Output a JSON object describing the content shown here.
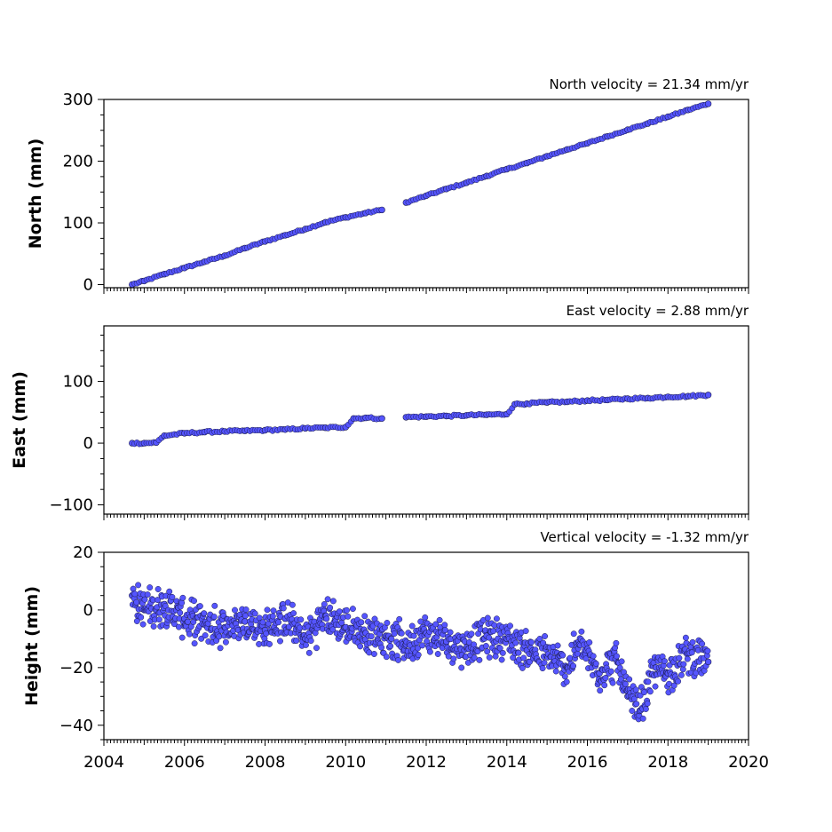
{
  "chart_data": [
    {
      "type": "scatter",
      "velocity_label": "North velocity = 21.34 mm/yr",
      "ylabel": "North (mm)",
      "xlim": [
        2004,
        2020
      ],
      "ylim": [
        -5,
        300
      ],
      "yticks": [
        0,
        100,
        200,
        300
      ],
      "marker_color": "#5555ff",
      "marker_edge": "#1a1a4a",
      "series": [
        {
          "x": [
            2004.7,
            2005.0,
            2005.5,
            2006.0,
            2006.5,
            2007.0,
            2007.5,
            2008.0,
            2008.5,
            2009.0,
            2009.5,
            2010.0,
            2010.5,
            2010.9,
            2011.5,
            2012.0,
            2012.5,
            2013.0,
            2013.5,
            2014.0,
            2014.5,
            2015.0,
            2015.5,
            2016.0,
            2016.5,
            2017.0,
            2017.5,
            2018.0,
            2018.5,
            2019.0
          ],
          "y": [
            0,
            6,
            17,
            27,
            37,
            47,
            59,
            70,
            80,
            90,
            101,
            109,
            116,
            121,
            133,
            144,
            155,
            165,
            176,
            187,
            197,
            208,
            219,
            229,
            240,
            251,
            261,
            272,
            283,
            293
          ]
        }
      ]
    },
    {
      "type": "scatter",
      "velocity_label": "East velocity = 2.88 mm/yr",
      "ylabel": "East (mm)",
      "xlim": [
        2004,
        2020
      ],
      "ylim": [
        -115,
        190
      ],
      "yticks": [
        -100,
        0,
        100
      ],
      "marker_color": "#5555ff",
      "marker_edge": "#1a1a4a",
      "series": [
        {
          "x": [
            2004.7,
            2005.0,
            2005.3,
            2005.5,
            2006.0,
            2006.5,
            2007.0,
            2007.5,
            2008.0,
            2008.5,
            2009.0,
            2009.5,
            2010.0,
            2010.2,
            2010.5,
            2010.9,
            2011.5,
            2012.0,
            2012.5,
            2013.0,
            2013.5,
            2014.0,
            2014.2,
            2014.5,
            2015.0,
            2015.5,
            2016.0,
            2016.5,
            2017.0,
            2017.5,
            2018.0,
            2018.5,
            2019.0
          ],
          "y": [
            0,
            0,
            1,
            12,
            16,
            18,
            19,
            20,
            21,
            22,
            24,
            25,
            26,
            40,
            41,
            40,
            42,
            43,
            44,
            45,
            46,
            47,
            63,
            64,
            66,
            67,
            69,
            70,
            72,
            73,
            75,
            76,
            78
          ]
        }
      ]
    },
    {
      "type": "scatter",
      "velocity_label": "Vertical velocity = -1.32 mm/yr",
      "ylabel": "Height (mm)",
      "xlim": [
        2004,
        2020
      ],
      "ylim": [
        -45,
        20
      ],
      "yticks": [
        -40,
        -20,
        0,
        20
      ],
      "xticks": [
        2004,
        2006,
        2008,
        2010,
        2012,
        2014,
        2016,
        2018,
        2020
      ],
      "marker_color": "#5555ff",
      "marker_edge": "#1a1a4a",
      "series": [
        {
          "x": [
            2004.7,
            2005.0,
            2005.5,
            2006.0,
            2006.5,
            2007.0,
            2007.5,
            2008.0,
            2008.5,
            2009.0,
            2009.5,
            2010.0,
            2010.5,
            2011.0,
            2011.5,
            2012.0,
            2012.5,
            2013.0,
            2013.5,
            2014.0,
            2014.5,
            2015.0,
            2015.5,
            2015.8,
            2016.3,
            2016.7,
            2017.0,
            2017.3,
            2017.7,
            2018.0,
            2018.5,
            2019.0
          ],
          "y": [
            5,
            0,
            2,
            -3,
            -5,
            -6,
            -4,
            -7,
            -3,
            -10,
            -2,
            -6,
            -8,
            -9,
            -12,
            -8,
            -11,
            -13,
            -9,
            -10,
            -14,
            -16,
            -20,
            -12,
            -22,
            -17,
            -30,
            -35,
            -20,
            -22,
            -15,
            -18
          ]
        }
      ]
    }
  ]
}
